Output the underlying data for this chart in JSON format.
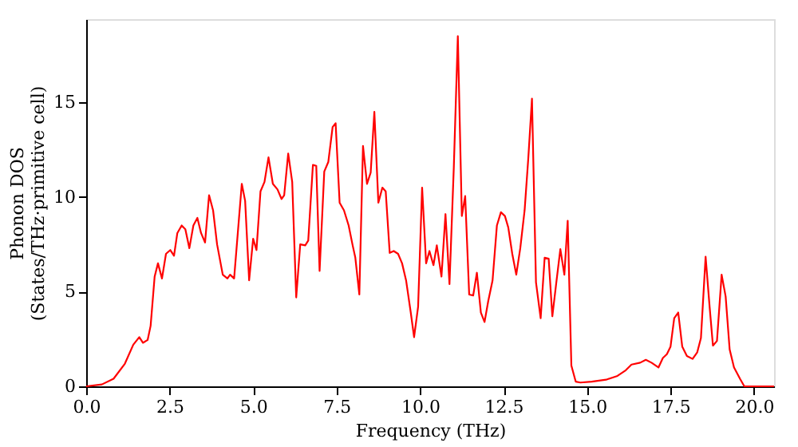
{
  "chart_data": {
    "type": "line",
    "xlabel": "Frequency (THz)",
    "ylabel": "Phonon DOS\n(States/THz·primitive cell)",
    "xlim": [
      0,
      20.6
    ],
    "ylim": [
      0,
      19.4
    ],
    "xticks": [
      {
        "value": 0,
        "label": "0.0"
      },
      {
        "value": 2.5,
        "label": "2.5"
      },
      {
        "value": 5,
        "label": "5.0"
      },
      {
        "value": 7.5,
        "label": "7.5"
      },
      {
        "value": 10,
        "label": "10.0"
      },
      {
        "value": 12.5,
        "label": "12.5"
      },
      {
        "value": 15,
        "label": "15.0"
      },
      {
        "value": 17.5,
        "label": "17.5"
      },
      {
        "value": 20,
        "label": "20.0"
      }
    ],
    "yticks": [
      0,
      5,
      10,
      15
    ],
    "grid": false,
    "marker": "none",
    "line_style": "solid",
    "series": [
      {
        "color": "#ff0000",
        "x": [
          0,
          0.47,
          0.82,
          1.16,
          1.41,
          1.59,
          1.7,
          1.84,
          1.93,
          2.05,
          2.15,
          2.27,
          2.39,
          2.52,
          2.63,
          2.73,
          2.86,
          2.97,
          3.09,
          3.21,
          3.33,
          3.44,
          3.56,
          3.68,
          3.8,
          3.92,
          4.09,
          4.23,
          4.31,
          4.43,
          4.66,
          4.76,
          4.88,
          5.0,
          5.1,
          5.22,
          5.34,
          5.46,
          5.59,
          5.73,
          5.85,
          5.93,
          6.05,
          6.17,
          6.29,
          6.41,
          6.56,
          6.65,
          6.79,
          6.89,
          6.99,
          7.13,
          7.25,
          7.38,
          7.47,
          7.59,
          7.72,
          7.86,
          7.98,
          8.06,
          8.18,
          8.29,
          8.41,
          8.52,
          8.63,
          8.75,
          8.87,
          8.97,
          9.09,
          9.21,
          9.34,
          9.46,
          9.58,
          9.72,
          9.82,
          9.94,
          10.06,
          10.18,
          10.28,
          10.4,
          10.5,
          10.64,
          10.76,
          10.88,
          11.01,
          11.13,
          11.25,
          11.35,
          11.47,
          11.59,
          11.7,
          11.82,
          11.93,
          12.04,
          12.17,
          12.3,
          12.42,
          12.54,
          12.64,
          12.76,
          12.88,
          13.0,
          13.13,
          13.24,
          13.35,
          13.47,
          13.61,
          13.73,
          13.85,
          13.96,
          14.08,
          14.2,
          14.32,
          14.42,
          14.53,
          14.66,
          14.8,
          15.14,
          15.57,
          15.91,
          16.16,
          16.33,
          16.59,
          16.76,
          16.93,
          17.14,
          17.27,
          17.39,
          17.5,
          17.61,
          17.73,
          17.85,
          17.99,
          18.16,
          18.3,
          18.41,
          18.55,
          18.67,
          18.77,
          18.89,
          19.03,
          19.15,
          19.27,
          19.4,
          19.58,
          19.71,
          20.6
        ],
        "values": [
          0,
          0.1,
          0.4,
          1.2,
          2.2,
          2.6,
          2.3,
          2.45,
          3.2,
          5.8,
          6.5,
          5.7,
          7.0,
          7.2,
          6.9,
          8.1,
          8.5,
          8.3,
          7.3,
          8.5,
          8.9,
          8.1,
          7.6,
          10.1,
          9.3,
          7.5,
          5.9,
          5.7,
          5.9,
          5.7,
          10.7,
          9.8,
          5.6,
          7.8,
          7.2,
          10.3,
          10.8,
          12.1,
          10.7,
          10.4,
          9.9,
          10.1,
          12.3,
          10.8,
          4.7,
          7.5,
          7.45,
          7.7,
          11.7,
          11.65,
          6.1,
          11.35,
          11.85,
          13.7,
          13.9,
          9.7,
          9.3,
          8.5,
          7.45,
          6.8,
          4.85,
          12.7,
          10.7,
          11.3,
          14.5,
          9.7,
          10.5,
          10.3,
          7.05,
          7.15,
          7.0,
          6.5,
          5.6,
          3.9,
          2.6,
          4.2,
          10.5,
          6.5,
          7.15,
          6.4,
          7.45,
          5.8,
          9.1,
          5.4,
          11.6,
          18.5,
          9.0,
          10.05,
          4.85,
          4.8,
          6.0,
          3.9,
          3.4,
          4.5,
          5.6,
          8.5,
          9.2,
          9.0,
          8.4,
          7.0,
          5.9,
          7.3,
          9.3,
          12.05,
          15.2,
          5.5,
          3.6,
          6.8,
          6.75,
          3.7,
          5.5,
          7.25,
          5.9,
          8.75,
          1.1,
          0.25,
          0.2,
          0.25,
          0.35,
          0.55,
          0.85,
          1.15,
          1.25,
          1.4,
          1.25,
          1.0,
          1.5,
          1.7,
          2.1,
          3.6,
          3.9,
          2.1,
          1.6,
          1.45,
          1.8,
          2.55,
          6.85,
          4.2,
          2.15,
          2.4,
          5.9,
          4.75,
          1.95,
          1.0,
          0.4,
          0,
          0
        ]
      }
    ]
  }
}
